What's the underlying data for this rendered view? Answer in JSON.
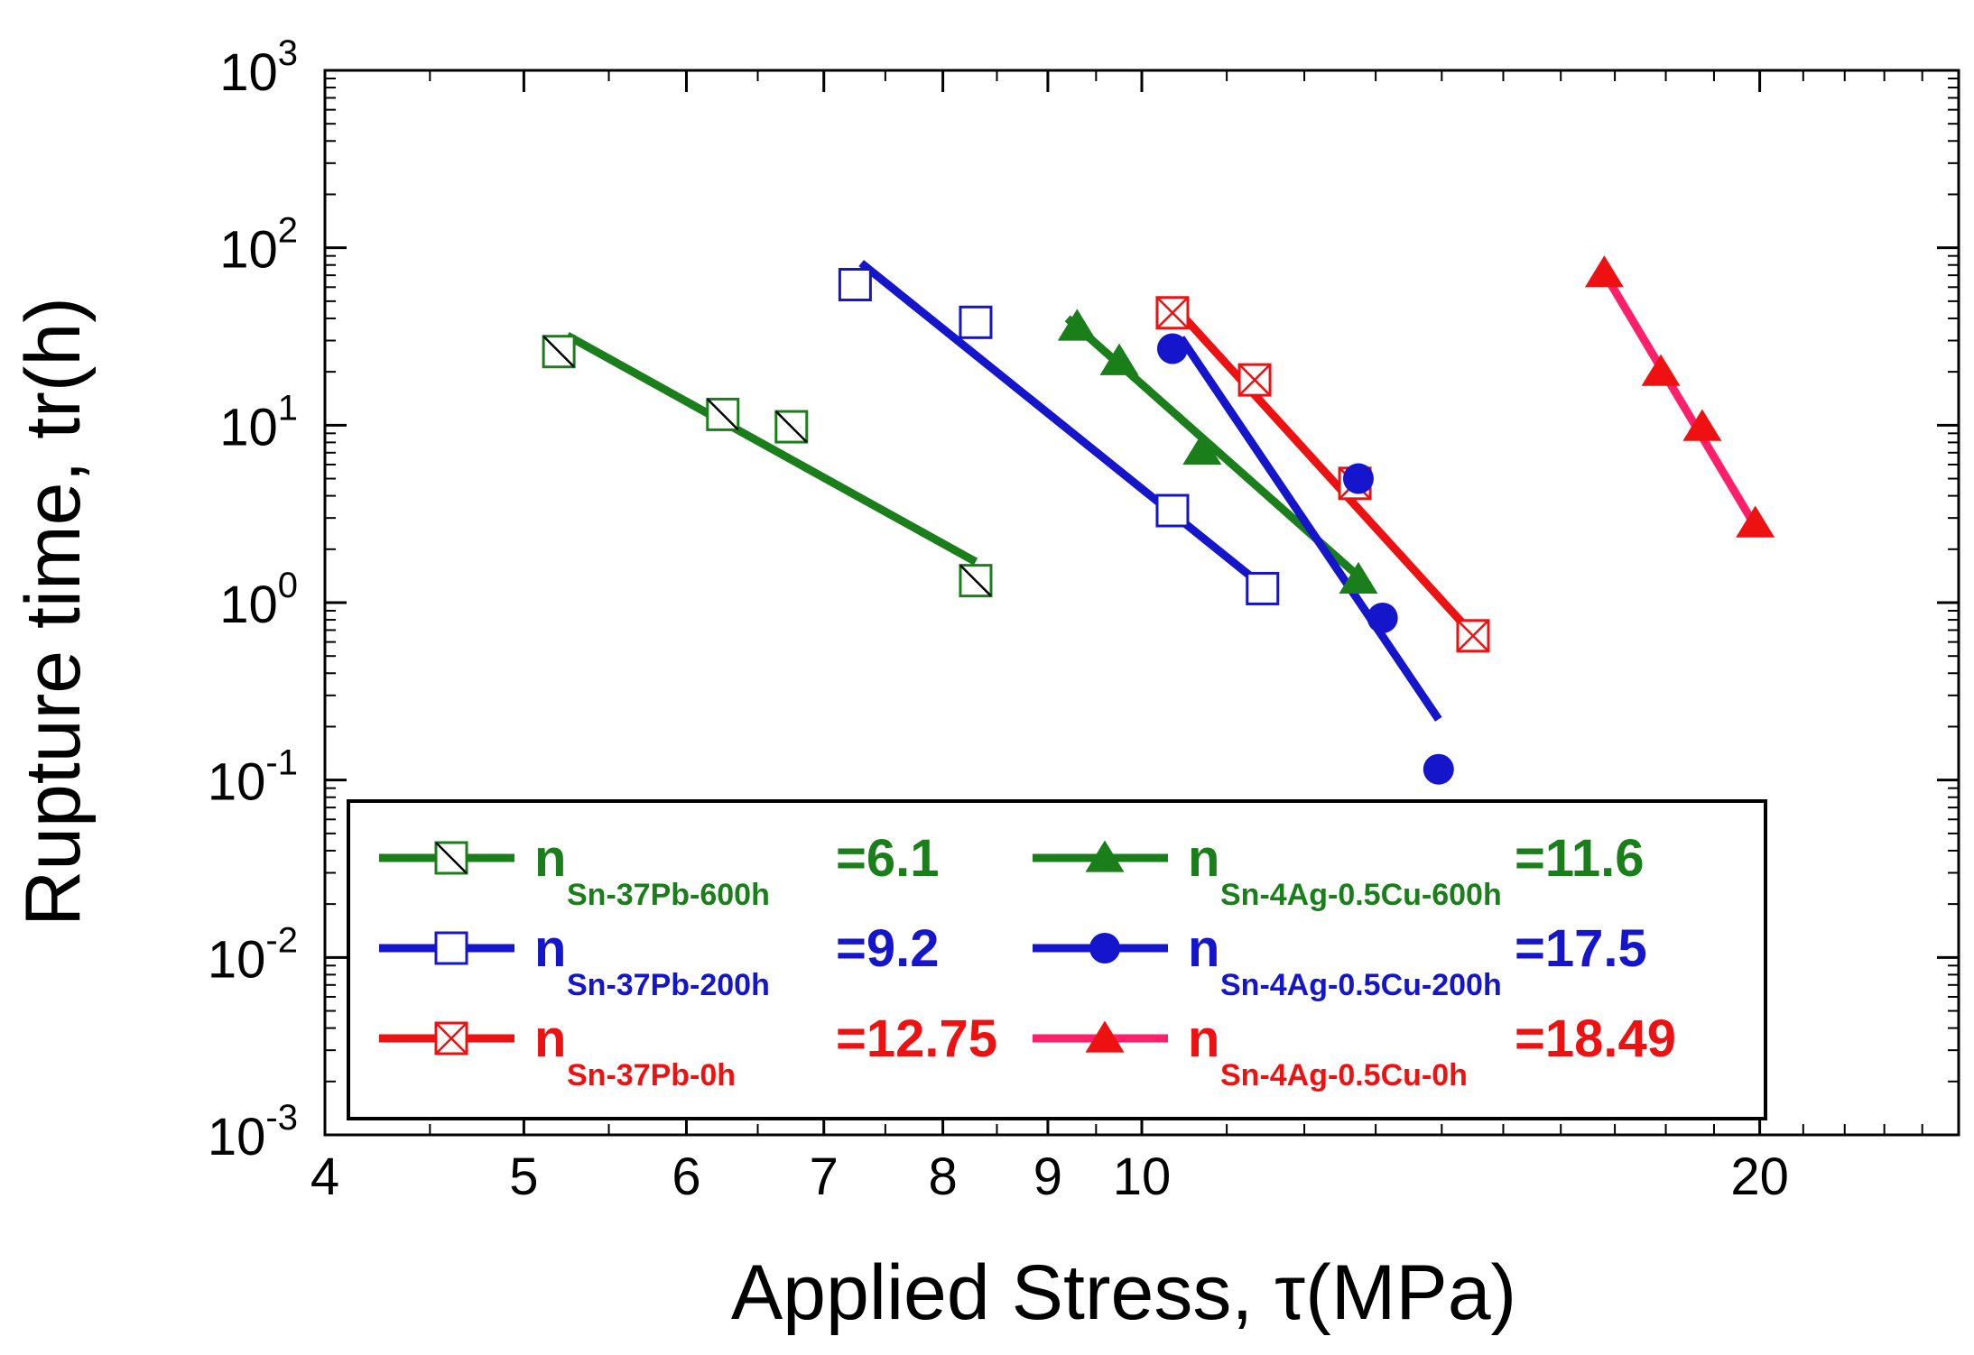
{
  "chart_data": {
    "type": "scatter",
    "title": "",
    "xlabel": "Applied Stress, τ(MPa)",
    "ylabel": "Rupture time, tr(h)",
    "xscale": "log",
    "yscale": "log",
    "xlim": [
      4,
      25
    ],
    "ylim": [
      0.001,
      1000
    ],
    "x_ticks": [
      4,
      5,
      6,
      7,
      8,
      9,
      10,
      20
    ],
    "x_tick_labels": [
      "4",
      "5",
      "6",
      "7",
      "8",
      "9",
      "10",
      "20"
    ],
    "y_ticks": [
      0.001,
      0.01,
      0.1,
      1,
      10,
      100,
      1000
    ],
    "y_tick_labels": [
      {
        "base": "10",
        "exp": "-3"
      },
      {
        "base": "10",
        "exp": "-2"
      },
      {
        "base": "10",
        "exp": "-1"
      },
      {
        "base": "10",
        "exp": "0"
      },
      {
        "base": "10",
        "exp": "1"
      },
      {
        "base": "10",
        "exp": "2"
      },
      {
        "base": "10",
        "exp": "3"
      }
    ],
    "legend_position": "lower-center",
    "series": [
      {
        "name": "Sn-37Pb-600h",
        "n_label": "n",
        "subscript": "Sn-37Pb-600h",
        "n_value": "=6.1",
        "color": "#1a7f1a",
        "marker": "square-slash",
        "points": [
          {
            "x": 5.2,
            "y": 26
          },
          {
            "x": 6.25,
            "y": 11.5
          },
          {
            "x": 6.75,
            "y": 9.8
          },
          {
            "x": 8.3,
            "y": 1.33
          }
        ],
        "fit": [
          {
            "x": 5.25,
            "y": 32
          },
          {
            "x": 8.3,
            "y": 1.7
          }
        ]
      },
      {
        "name": "Sn-37Pb-200h",
        "n_label": "n",
        "subscript": "Sn-37Pb-200h",
        "n_value": "=9.2",
        "color": "#1515cc",
        "marker": "square-open",
        "points": [
          {
            "x": 7.25,
            "y": 62
          },
          {
            "x": 8.3,
            "y": 38
          },
          {
            "x": 10.35,
            "y": 3.3
          },
          {
            "x": 11.45,
            "y": 1.2
          }
        ],
        "fit": [
          {
            "x": 7.3,
            "y": 82
          },
          {
            "x": 11.35,
            "y": 1.35
          }
        ]
      },
      {
        "name": "Sn-37Pb-0h",
        "n_label": "n",
        "subscript": "Sn-37Pb-0h",
        "n_value": "=12.75",
        "color": "#ee1111",
        "marker": "square-x",
        "points": [
          {
            "x": 10.35,
            "y": 43
          },
          {
            "x": 11.35,
            "y": 18
          },
          {
            "x": 12.7,
            "y": 4.7
          },
          {
            "x": 14.5,
            "y": 0.65
          }
        ],
        "fit": [
          {
            "x": 10.4,
            "y": 45
          },
          {
            "x": 14.4,
            "y": 0.72
          }
        ]
      },
      {
        "name": "Sn-4Ag-0.5Cu-600h",
        "n_label": "n",
        "subscript": "Sn-4Ag-0.5Cu-600h",
        "n_value": "=11.6",
        "color": "#1a7f1a",
        "marker": "triangle-filled",
        "points": [
          {
            "x": 9.3,
            "y": 36
          },
          {
            "x": 9.75,
            "y": 23
          },
          {
            "x": 10.7,
            "y": 7.2
          },
          {
            "x": 12.75,
            "y": 1.35
          }
        ],
        "fit": [
          {
            "x": 9.2,
            "y": 40
          },
          {
            "x": 12.9,
            "y": 1.25
          }
        ]
      },
      {
        "name": "Sn-4Ag-0.5Cu-200h",
        "n_label": "n",
        "subscript": "Sn-4Ag-0.5Cu-200h",
        "n_value": "=17.5",
        "color": "#1515cc",
        "marker": "circle-filled",
        "points": [
          {
            "x": 10.35,
            "y": 27
          },
          {
            "x": 12.75,
            "y": 5.0
          },
          {
            "x": 13.1,
            "y": 0.82
          },
          {
            "x": 13.95,
            "y": 0.115
          }
        ],
        "fit": [
          {
            "x": 10.45,
            "y": 31
          },
          {
            "x": 13.95,
            "y": 0.22
          }
        ]
      },
      {
        "name": "Sn-4Ag-0.5Cu-0h",
        "n_label": "n",
        "subscript": "Sn-4Ag-0.5Cu-0h",
        "n_value": "=18.49",
        "color": "#ee1111",
        "line_color": "#ff1f6a",
        "marker": "triangle-filled",
        "points": [
          {
            "x": 16.8,
            "y": 72
          },
          {
            "x": 17.9,
            "y": 20
          },
          {
            "x": 18.75,
            "y": 9.8
          },
          {
            "x": 19.9,
            "y": 2.8
          }
        ],
        "fit": [
          {
            "x": 16.8,
            "y": 72
          },
          {
            "x": 19.9,
            "y": 2.7
          }
        ]
      }
    ]
  }
}
